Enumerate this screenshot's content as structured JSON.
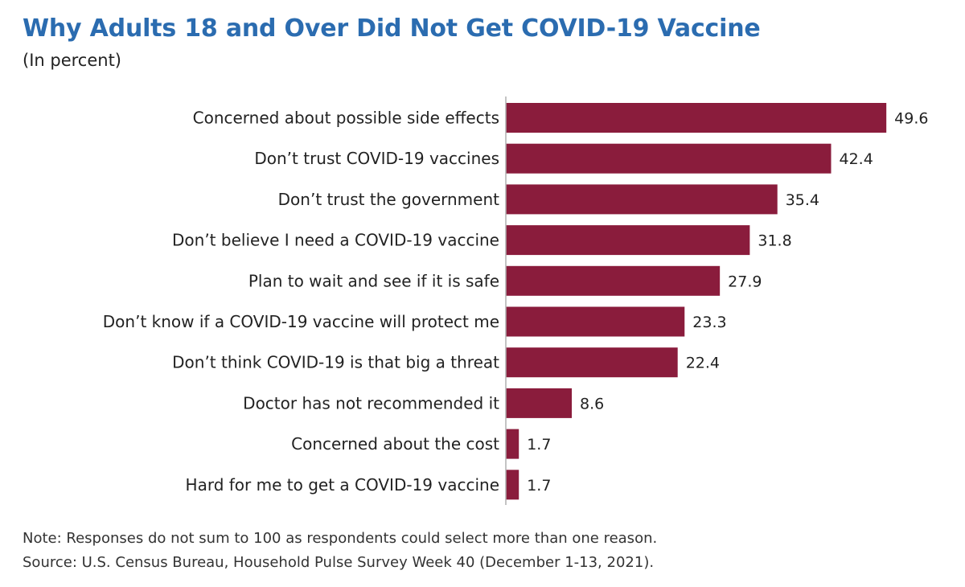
{
  "chart_data": {
    "type": "bar",
    "orientation": "horizontal",
    "title": "Why Adults 18 and Over Did Not Get COVID-19 Vaccine",
    "subtitle": "(In percent)",
    "categories": [
      "Concerned about possible side effects",
      "Don’t trust COVID-19 vaccines",
      "Don’t trust the government",
      "Don’t believe I need a COVID-19 vaccine",
      "Plan to wait and see if it is safe",
      "Don’t know if a COVID-19 vaccine will protect me",
      "Don’t think COVID-19 is that big a threat",
      "Doctor has not recommended it",
      "Concerned about the cost",
      "Hard for me to get a COVID-19 vaccine"
    ],
    "values": [
      49.6,
      42.4,
      35.4,
      31.8,
      27.9,
      23.3,
      22.4,
      8.6,
      1.7,
      1.7
    ],
    "value_labels": [
      "49.6",
      "42.4",
      "35.4",
      "31.8",
      "27.9",
      "23.3",
      "22.4",
      "8.6",
      "1.7",
      "1.7"
    ],
    "xlim": [
      0,
      50
    ],
    "grid": false,
    "legend": "none",
    "data_labels": "outside-end",
    "colors": {
      "title": "#2b6cb0",
      "bar": "#8a1c3c",
      "axis": "#b0b0b0"
    }
  },
  "notes": {
    "note": "Note: Responses do not sum to 100 as respondents could select more than one reason.",
    "source": "Source: U.S. Census Bureau, Household Pulse Survey Week 40 (December 1-13, 2021)."
  }
}
